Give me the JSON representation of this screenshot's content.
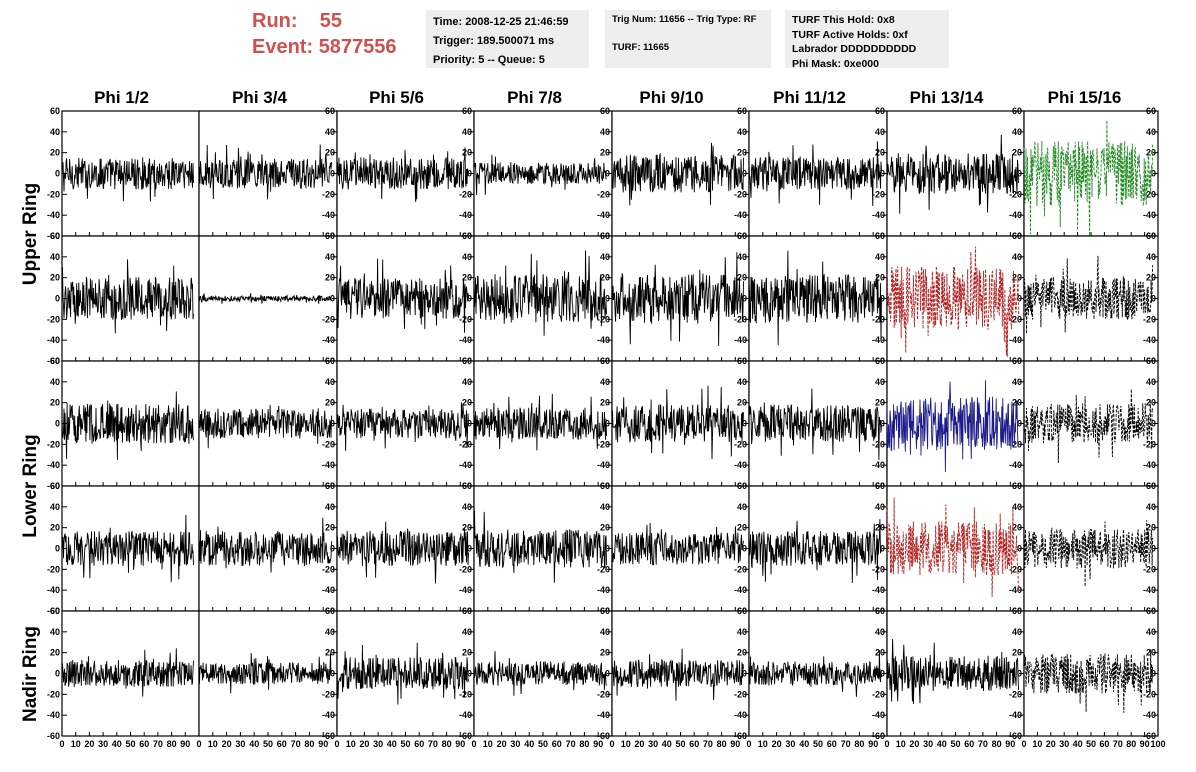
{
  "header": {
    "run_label": "Run:",
    "run_value": "55",
    "event_label": "Event:",
    "event_value": "5877556"
  },
  "info_time": {
    "time": "Time: 2008-12-25 21:46:59",
    "trigger": "Trigger: 189.500071 ms",
    "priority": "Priority: 5 -- Queue: 5"
  },
  "info_trig": {
    "trig": "Trig Num: 11656 -- Trig Type: RF",
    "turf": "TURF: 11665"
  },
  "info_turf": {
    "hold": "TURF This Hold: 0x8",
    "active": "TURF Active Holds: 0xf",
    "labrador": "Labrador DDDDDDDDDD",
    "phimask": "Phi Mask: 0xe000"
  },
  "columns": [
    "Phi 1/2",
    "Phi 3/4",
    "Phi 5/6",
    "Phi 7/8",
    "Phi 9/10",
    "Phi 11/12",
    "Phi 13/14",
    "Phi 15/16"
  ],
  "rings": {
    "upper": "Upper Ring",
    "lower": "Lower Ring",
    "nadir": "Nadir Ring"
  },
  "chart_data": {
    "type": "line",
    "description_rows": 5,
    "description_cols": 8,
    "xlim": [
      0,
      100
    ],
    "ylim": [
      -60,
      60
    ],
    "x_ticks": [
      0,
      10,
      20,
      30,
      40,
      50,
      60,
      70,
      80,
      90,
      100
    ],
    "y_ticks": [
      -60,
      -40,
      -20,
      0,
      20,
      40,
      60
    ],
    "colors": {
      "normal": "#000000",
      "triggered_green": "#228b22",
      "triggered_red": "#b22222",
      "triggered_blue": "#1c1c8c"
    },
    "panels": [
      [
        {
          "amp": 12,
          "color": "normal",
          "dashed": false
        },
        {
          "amp": 11,
          "color": "normal",
          "dashed": false
        },
        {
          "amp": 12,
          "color": "normal",
          "dashed": false
        },
        {
          "amp": 8,
          "color": "normal",
          "dashed": false
        },
        {
          "amp": 14,
          "color": "normal",
          "dashed": false
        },
        {
          "amp": 12,
          "color": "normal",
          "dashed": false
        },
        {
          "amp": 15,
          "color": "normal",
          "dashed": false
        },
        {
          "amp": 24,
          "color": "triggered_green",
          "dashed": true
        }
      ],
      [
        {
          "amp": 16,
          "color": "normal",
          "dashed": false
        },
        {
          "amp": 2,
          "color": "normal",
          "dashed": false
        },
        {
          "amp": 15,
          "color": "normal",
          "dashed": false
        },
        {
          "amp": 18,
          "color": "normal",
          "dashed": false
        },
        {
          "amp": 18,
          "color": "normal",
          "dashed": false
        },
        {
          "amp": 18,
          "color": "normal",
          "dashed": false
        },
        {
          "amp": 24,
          "color": "triggered_red",
          "dashed": true
        },
        {
          "amp": 16,
          "color": "normal",
          "dashed": true
        }
      ],
      [
        {
          "amp": 15,
          "color": "normal",
          "dashed": false
        },
        {
          "amp": 11,
          "color": "normal",
          "dashed": false
        },
        {
          "amp": 11,
          "color": "normal",
          "dashed": false
        },
        {
          "amp": 12,
          "color": "normal",
          "dashed": false
        },
        {
          "amp": 14,
          "color": "normal",
          "dashed": false
        },
        {
          "amp": 14,
          "color": "normal",
          "dashed": false
        },
        {
          "amp": 20,
          "color": "triggered_blue",
          "dashed": false
        },
        {
          "amp": 15,
          "color": "normal",
          "dashed": true
        }
      ],
      [
        {
          "amp": 13,
          "color": "normal",
          "dashed": false
        },
        {
          "amp": 13,
          "color": "normal",
          "dashed": false
        },
        {
          "amp": 13,
          "color": "normal",
          "dashed": false
        },
        {
          "amp": 14,
          "color": "normal",
          "dashed": false
        },
        {
          "amp": 12,
          "color": "normal",
          "dashed": false
        },
        {
          "amp": 13,
          "color": "normal",
          "dashed": false
        },
        {
          "amp": 20,
          "color": "triggered_red",
          "dashed": true
        },
        {
          "amp": 15,
          "color": "normal",
          "dashed": true
        }
      ],
      [
        {
          "amp": 10,
          "color": "normal",
          "dashed": false
        },
        {
          "amp": 8,
          "color": "normal",
          "dashed": false
        },
        {
          "amp": 12,
          "color": "normal",
          "dashed": false
        },
        {
          "amp": 9,
          "color": "normal",
          "dashed": false
        },
        {
          "amp": 10,
          "color": "normal",
          "dashed": false
        },
        {
          "amp": 9,
          "color": "normal",
          "dashed": false
        },
        {
          "amp": 13,
          "color": "normal",
          "dashed": false
        },
        {
          "amp": 15,
          "color": "normal",
          "dashed": true
        }
      ]
    ]
  }
}
